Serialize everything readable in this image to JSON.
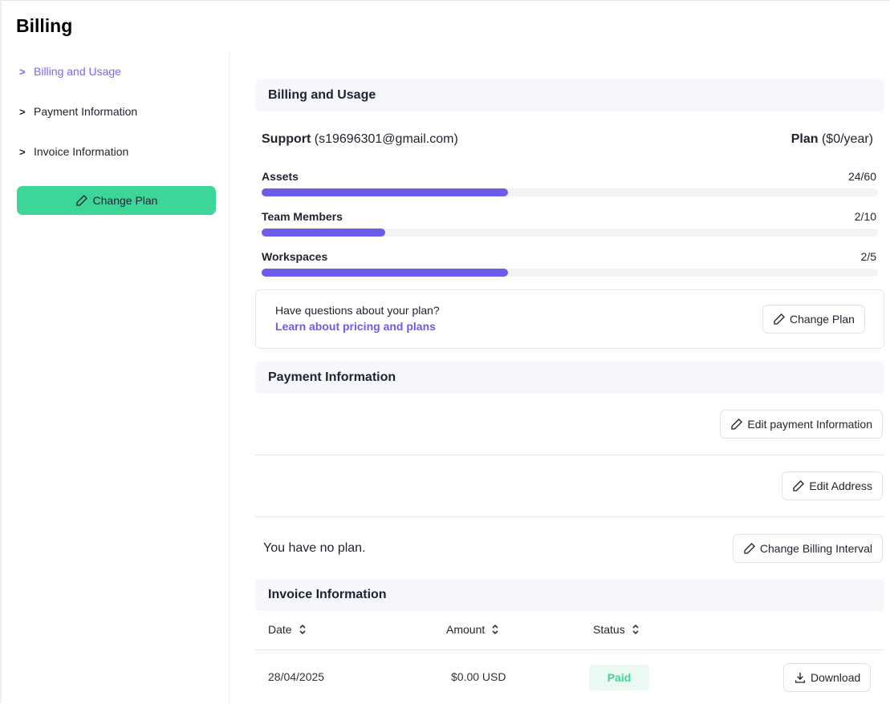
{
  "page_title": "Billing",
  "sidebar": {
    "items": [
      {
        "label": "Billing and Usage",
        "active": true
      },
      {
        "label": "Payment Information"
      },
      {
        "label": "Invoice Information"
      }
    ],
    "change_plan": "Change Plan"
  },
  "billing": {
    "title": "Billing and Usage",
    "support_label": "Support",
    "support_email": "(s19696301@gmail.com)",
    "plan_label": "Plan",
    "plan_price": "($0/year)",
    "usage": [
      {
        "label": "Assets",
        "value": "24/60",
        "percent": 40
      },
      {
        "label": "Team Members",
        "value": "2/10",
        "percent": 20
      },
      {
        "label": "Workspaces",
        "value": "2/5",
        "percent": 40
      }
    ],
    "question": "Have questions about your plan?",
    "learn_link": "Learn about pricing and plans",
    "change_plan": "Change Plan"
  },
  "payment": {
    "title": "Payment Information",
    "edit_payment": "Edit payment Information",
    "edit_address": "Edit Address",
    "no_plan": "You have no plan.",
    "change_interval": "Change Billing Interval"
  },
  "invoice": {
    "title": "Invoice Information",
    "columns": [
      "Date",
      "Amount",
      "Status"
    ],
    "rows": [
      {
        "date": "28/04/2025",
        "amount": "$0.00 USD",
        "status": "Paid",
        "download": "Download"
      }
    ]
  },
  "colors": {
    "accent": "#6c5ce7",
    "green": "#3dd598",
    "paid_bg": "#eafaf3",
    "paid_text": "#3dd598"
  }
}
